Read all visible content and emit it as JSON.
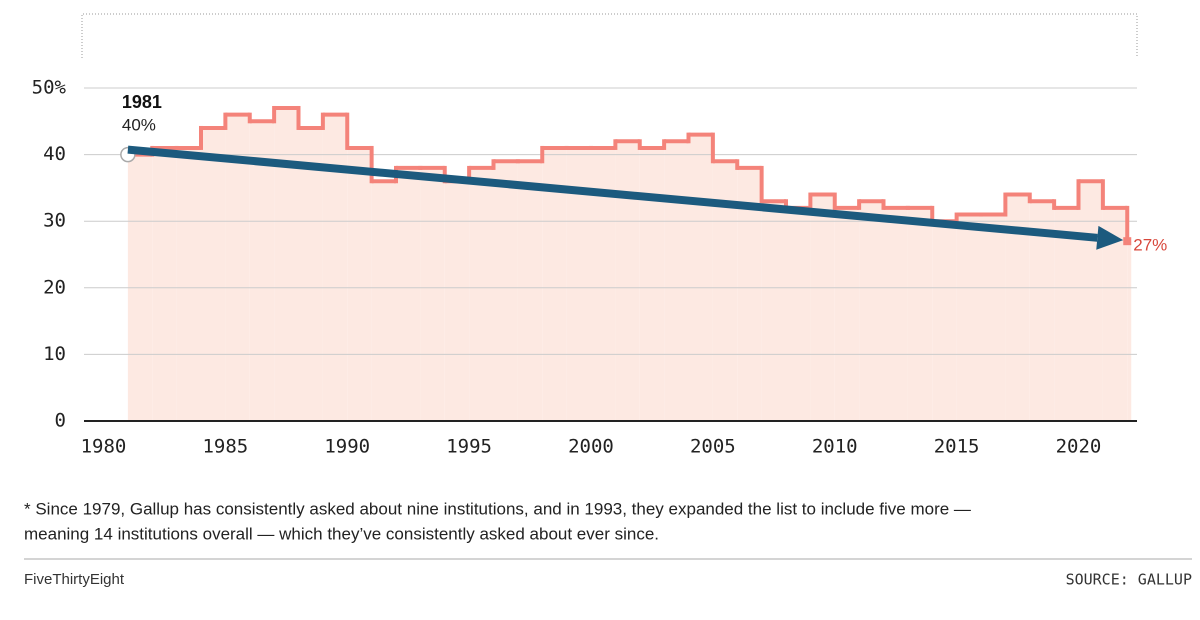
{
  "chart_data": {
    "type": "step",
    "x": [
      1981,
      1982,
      1983,
      1984,
      1985,
      1986,
      1987,
      1988,
      1989,
      1990,
      1991,
      1992,
      1993,
      1994,
      1995,
      1996,
      1997,
      1998,
      1999,
      2000,
      2001,
      2002,
      2003,
      2004,
      2005,
      2006,
      2007,
      2008,
      2009,
      2010,
      2011,
      2012,
      2013,
      2014,
      2015,
      2016,
      2017,
      2018,
      2019,
      2020,
      2021,
      2022
    ],
    "values": [
      40,
      41,
      41,
      44,
      46,
      45,
      47,
      44,
      46,
      41,
      36,
      38,
      38,
      36,
      38,
      39,
      39,
      41,
      41,
      41,
      42,
      41,
      42,
      43,
      39,
      38,
      33,
      32,
      34,
      32,
      33,
      32,
      32,
      30,
      31,
      31,
      34,
      33,
      32,
      36,
      32,
      27
    ],
    "value_labels": [
      "40%",
      null,
      null,
      null,
      null,
      null,
      null,
      null,
      null,
      null,
      null,
      null,
      null,
      null,
      null,
      null,
      null,
      null,
      null,
      null,
      null,
      null,
      null,
      null,
      null,
      null,
      null,
      null,
      null,
      null,
      null,
      null,
      null,
      null,
      null,
      null,
      null,
      null,
      null,
      null,
      null,
      "27%"
    ],
    "color": "#f4837a",
    "area_color": "#fde9e2",
    "trend_color": "#1c5a7e",
    "xlim": [
      1979.2,
      2022.4
    ],
    "xticks": [
      1980,
      1985,
      1990,
      1995,
      2000,
      2005,
      2010,
      2015,
      2020
    ],
    "ylim": [
      0,
      50
    ],
    "yticks": [
      0,
      10,
      20,
      30,
      40,
      {
        "value": 50,
        "label": "50%"
      }
    ],
    "grid": true,
    "note": "* Since 1979, Gallup has consistently asked about nine institutions, and in 1993, they expanded the list to include five more —",
    "note_line2": "meaning 14 institutions overall — which they’ve consistently asked about ever since.",
    "credit": "FiveThirtyEight",
    "source": "SOURCE: GALLUP"
  }
}
